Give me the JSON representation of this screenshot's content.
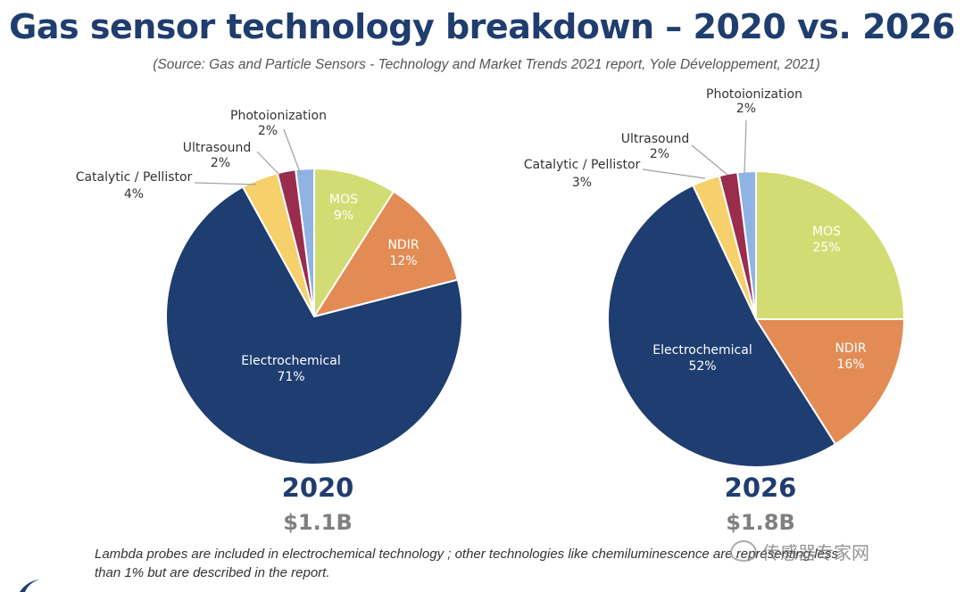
{
  "header": {
    "title": "Gas sensor technology breakdown – 2020 vs. 2026",
    "source": "(Source: Gas and Particle Sensors - Technology and Market Trends 2021 report, Yole Développement, 2021)"
  },
  "chart_data": [
    {
      "type": "pie",
      "year": "2020",
      "total": "$1.1B",
      "slices": [
        {
          "name": "MOS",
          "value": 9,
          "label": "9%",
          "color": "#d3dc72"
        },
        {
          "name": "NDIR",
          "value": 12,
          "label": "12%",
          "color": "#e38b55"
        },
        {
          "name": "Electrochemical",
          "value": 71,
          "label": "71%",
          "color": "#1e3d70"
        },
        {
          "name": "Catalytic / Pellistor",
          "value": 4,
          "label": "4%",
          "color": "#f5d06b"
        },
        {
          "name": "Ultrasound",
          "value": 2,
          "label": "2%",
          "color": "#9a2c4e"
        },
        {
          "name": "Photoionization",
          "value": 2,
          "label": "2%",
          "color": "#8fb3e3"
        }
      ]
    },
    {
      "type": "pie",
      "year": "2026",
      "total": "$1.8B",
      "slices": [
        {
          "name": "MOS",
          "value": 25,
          "label": "25%",
          "color": "#d3dc72"
        },
        {
          "name": "NDIR",
          "value": 16,
          "label": "16%",
          "color": "#e38b55"
        },
        {
          "name": "Electrochemical",
          "value": 52,
          "label": "52%",
          "color": "#1e3d70"
        },
        {
          "name": "Catalytic / Pellistor",
          "value": 3,
          "label": "3%",
          "color": "#f5d06b"
        },
        {
          "name": "Ultrasound",
          "value": 2,
          "label": "2%",
          "color": "#9a2c4e"
        },
        {
          "name": "Photoionization",
          "value": 2,
          "label": "2%",
          "color": "#8fb3e3"
        }
      ]
    }
  ],
  "footnote": "Lambda probes are included in electrochemical technology ; other technologies like chemiluminescence are representing less than 1% but are described in the report.",
  "watermark": "传感器专家网"
}
